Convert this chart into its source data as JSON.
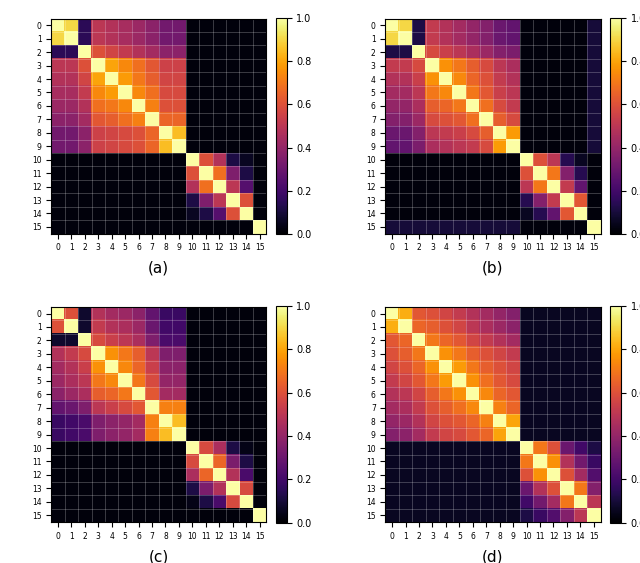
{
  "n": 16,
  "colormap": "inferno",
  "vmin": 0.0,
  "vmax": 1.0,
  "tick_labels": [
    "0",
    "1",
    "2",
    "3",
    "4",
    "5",
    "6",
    "7",
    "8",
    "9",
    "10",
    "11",
    "12",
    "13",
    "14",
    "15"
  ],
  "subplot_labels": [
    "(a)",
    "(b)",
    "(c)",
    "(d)"
  ],
  "label_fontsize": 11,
  "matrices": {
    "a": [
      [
        1.0,
        0.9,
        0.15,
        0.5,
        0.48,
        0.45,
        0.42,
        0.38,
        0.32,
        0.32,
        0.02,
        0.02,
        0.02,
        0.02,
        0.02,
        0.02
      ],
      [
        0.9,
        1.0,
        0.15,
        0.5,
        0.48,
        0.45,
        0.42,
        0.38,
        0.32,
        0.32,
        0.02,
        0.02,
        0.02,
        0.02,
        0.02,
        0.02
      ],
      [
        0.15,
        0.15,
        1.0,
        0.6,
        0.56,
        0.52,
        0.48,
        0.44,
        0.38,
        0.38,
        0.02,
        0.02,
        0.02,
        0.02,
        0.02,
        0.02
      ],
      [
        0.5,
        0.5,
        0.6,
        1.0,
        0.8,
        0.74,
        0.68,
        0.62,
        0.55,
        0.55,
        0.02,
        0.02,
        0.02,
        0.02,
        0.02,
        0.02
      ],
      [
        0.48,
        0.48,
        0.56,
        0.8,
        1.0,
        0.78,
        0.7,
        0.64,
        0.56,
        0.56,
        0.02,
        0.02,
        0.02,
        0.02,
        0.02,
        0.02
      ],
      [
        0.45,
        0.45,
        0.52,
        0.74,
        0.78,
        1.0,
        0.74,
        0.68,
        0.58,
        0.58,
        0.02,
        0.02,
        0.02,
        0.02,
        0.02,
        0.02
      ],
      [
        0.42,
        0.42,
        0.48,
        0.68,
        0.7,
        0.74,
        1.0,
        0.72,
        0.6,
        0.6,
        0.02,
        0.02,
        0.02,
        0.02,
        0.02,
        0.02
      ],
      [
        0.38,
        0.38,
        0.44,
        0.62,
        0.64,
        0.68,
        0.72,
        1.0,
        0.66,
        0.66,
        0.02,
        0.02,
        0.02,
        0.02,
        0.02,
        0.02
      ],
      [
        0.32,
        0.32,
        0.38,
        0.55,
        0.56,
        0.58,
        0.6,
        0.66,
        1.0,
        0.85,
        0.02,
        0.02,
        0.02,
        0.02,
        0.02,
        0.02
      ],
      [
        0.32,
        0.32,
        0.38,
        0.55,
        0.56,
        0.58,
        0.6,
        0.66,
        0.85,
        1.0,
        0.02,
        0.02,
        0.02,
        0.02,
        0.02,
        0.02
      ],
      [
        0.02,
        0.02,
        0.02,
        0.02,
        0.02,
        0.02,
        0.02,
        0.02,
        0.02,
        0.02,
        1.0,
        0.6,
        0.48,
        0.12,
        0.06,
        0.02
      ],
      [
        0.02,
        0.02,
        0.02,
        0.02,
        0.02,
        0.02,
        0.02,
        0.02,
        0.02,
        0.02,
        0.6,
        1.0,
        0.68,
        0.35,
        0.12,
        0.02
      ],
      [
        0.02,
        0.02,
        0.02,
        0.02,
        0.02,
        0.02,
        0.02,
        0.02,
        0.02,
        0.02,
        0.48,
        0.68,
        1.0,
        0.5,
        0.25,
        0.02
      ],
      [
        0.02,
        0.02,
        0.02,
        0.02,
        0.02,
        0.02,
        0.02,
        0.02,
        0.02,
        0.02,
        0.12,
        0.35,
        0.5,
        1.0,
        0.6,
        0.02
      ],
      [
        0.02,
        0.02,
        0.02,
        0.02,
        0.02,
        0.02,
        0.02,
        0.02,
        0.02,
        0.02,
        0.06,
        0.12,
        0.25,
        0.6,
        1.0,
        0.02
      ],
      [
        0.02,
        0.02,
        0.02,
        0.02,
        0.02,
        0.02,
        0.02,
        0.02,
        0.02,
        0.02,
        0.02,
        0.02,
        0.02,
        0.02,
        0.02,
        1.0
      ]
    ],
    "b": [
      [
        1.0,
        0.9,
        0.12,
        0.52,
        0.48,
        0.44,
        0.4,
        0.36,
        0.3,
        0.28,
        0.02,
        0.02,
        0.02,
        0.02,
        0.02,
        0.1
      ],
      [
        0.9,
        1.0,
        0.12,
        0.52,
        0.48,
        0.44,
        0.4,
        0.36,
        0.3,
        0.28,
        0.02,
        0.02,
        0.02,
        0.02,
        0.02,
        0.1
      ],
      [
        0.12,
        0.12,
        1.0,
        0.58,
        0.54,
        0.5,
        0.46,
        0.42,
        0.36,
        0.34,
        0.02,
        0.02,
        0.02,
        0.02,
        0.02,
        0.1
      ],
      [
        0.52,
        0.52,
        0.58,
        1.0,
        0.76,
        0.7,
        0.64,
        0.58,
        0.5,
        0.46,
        0.02,
        0.02,
        0.02,
        0.02,
        0.02,
        0.1
      ],
      [
        0.48,
        0.48,
        0.54,
        0.76,
        1.0,
        0.74,
        0.66,
        0.6,
        0.52,
        0.48,
        0.02,
        0.02,
        0.02,
        0.02,
        0.02,
        0.1
      ],
      [
        0.44,
        0.44,
        0.5,
        0.7,
        0.74,
        1.0,
        0.7,
        0.62,
        0.54,
        0.5,
        0.02,
        0.02,
        0.02,
        0.02,
        0.02,
        0.1
      ],
      [
        0.4,
        0.4,
        0.46,
        0.64,
        0.66,
        0.7,
        1.0,
        0.68,
        0.58,
        0.52,
        0.02,
        0.02,
        0.02,
        0.02,
        0.02,
        0.1
      ],
      [
        0.36,
        0.36,
        0.42,
        0.58,
        0.6,
        0.62,
        0.68,
        1.0,
        0.64,
        0.58,
        0.02,
        0.02,
        0.02,
        0.02,
        0.02,
        0.1
      ],
      [
        0.3,
        0.3,
        0.36,
        0.5,
        0.52,
        0.54,
        0.58,
        0.64,
        1.0,
        0.78,
        0.02,
        0.02,
        0.02,
        0.02,
        0.02,
        0.1
      ],
      [
        0.28,
        0.28,
        0.34,
        0.46,
        0.48,
        0.5,
        0.52,
        0.58,
        0.78,
        1.0,
        0.02,
        0.02,
        0.02,
        0.02,
        0.02,
        0.1
      ],
      [
        0.02,
        0.02,
        0.02,
        0.02,
        0.02,
        0.02,
        0.02,
        0.02,
        0.02,
        0.02,
        1.0,
        0.6,
        0.5,
        0.14,
        0.06,
        0.02
      ],
      [
        0.02,
        0.02,
        0.02,
        0.02,
        0.02,
        0.02,
        0.02,
        0.02,
        0.02,
        0.02,
        0.6,
        1.0,
        0.7,
        0.36,
        0.14,
        0.02
      ],
      [
        0.02,
        0.02,
        0.02,
        0.02,
        0.02,
        0.02,
        0.02,
        0.02,
        0.02,
        0.02,
        0.5,
        0.7,
        1.0,
        0.52,
        0.28,
        0.02
      ],
      [
        0.02,
        0.02,
        0.02,
        0.02,
        0.02,
        0.02,
        0.02,
        0.02,
        0.02,
        0.02,
        0.14,
        0.36,
        0.52,
        1.0,
        0.62,
        0.02
      ],
      [
        0.02,
        0.02,
        0.02,
        0.02,
        0.02,
        0.02,
        0.02,
        0.02,
        0.02,
        0.02,
        0.06,
        0.14,
        0.28,
        0.62,
        1.0,
        0.02
      ],
      [
        0.1,
        0.1,
        0.1,
        0.1,
        0.1,
        0.1,
        0.1,
        0.1,
        0.1,
        0.1,
        0.02,
        0.02,
        0.02,
        0.02,
        0.02,
        1.0
      ]
    ],
    "c": [
      [
        1.0,
        0.6,
        0.08,
        0.48,
        0.44,
        0.42,
        0.38,
        0.28,
        0.18,
        0.18,
        0.02,
        0.02,
        0.02,
        0.02,
        0.02,
        0.02
      ],
      [
        0.6,
        1.0,
        0.08,
        0.52,
        0.48,
        0.46,
        0.42,
        0.3,
        0.2,
        0.2,
        0.02,
        0.02,
        0.02,
        0.02,
        0.02,
        0.02
      ],
      [
        0.08,
        0.08,
        1.0,
        0.58,
        0.54,
        0.5,
        0.46,
        0.35,
        0.22,
        0.22,
        0.02,
        0.02,
        0.02,
        0.02,
        0.02,
        0.02
      ],
      [
        0.48,
        0.52,
        0.58,
        1.0,
        0.76,
        0.7,
        0.64,
        0.5,
        0.35,
        0.35,
        0.02,
        0.02,
        0.02,
        0.02,
        0.02,
        0.02
      ],
      [
        0.44,
        0.48,
        0.54,
        0.76,
        1.0,
        0.74,
        0.66,
        0.54,
        0.38,
        0.38,
        0.02,
        0.02,
        0.02,
        0.02,
        0.02,
        0.02
      ],
      [
        0.42,
        0.46,
        0.5,
        0.7,
        0.74,
        1.0,
        0.7,
        0.58,
        0.4,
        0.4,
        0.02,
        0.02,
        0.02,
        0.02,
        0.02,
        0.02
      ],
      [
        0.38,
        0.42,
        0.46,
        0.64,
        0.66,
        0.7,
        1.0,
        0.62,
        0.44,
        0.44,
        0.02,
        0.02,
        0.02,
        0.02,
        0.02,
        0.02
      ],
      [
        0.28,
        0.3,
        0.35,
        0.5,
        0.54,
        0.58,
        0.62,
        1.0,
        0.72,
        0.72,
        0.02,
        0.02,
        0.02,
        0.02,
        0.02,
        0.02
      ],
      [
        0.18,
        0.2,
        0.22,
        0.35,
        0.38,
        0.4,
        0.44,
        0.72,
        1.0,
        0.85,
        0.02,
        0.02,
        0.02,
        0.02,
        0.02,
        0.02
      ],
      [
        0.18,
        0.2,
        0.22,
        0.35,
        0.38,
        0.4,
        0.44,
        0.72,
        0.85,
        1.0,
        0.02,
        0.02,
        0.02,
        0.02,
        0.02,
        0.02
      ],
      [
        0.02,
        0.02,
        0.02,
        0.02,
        0.02,
        0.02,
        0.02,
        0.02,
        0.02,
        0.02,
        1.0,
        0.58,
        0.46,
        0.12,
        0.04,
        0.02
      ],
      [
        0.02,
        0.02,
        0.02,
        0.02,
        0.02,
        0.02,
        0.02,
        0.02,
        0.02,
        0.02,
        0.58,
        1.0,
        0.66,
        0.34,
        0.12,
        0.02
      ],
      [
        0.02,
        0.02,
        0.02,
        0.02,
        0.02,
        0.02,
        0.02,
        0.02,
        0.02,
        0.02,
        0.46,
        0.66,
        1.0,
        0.48,
        0.22,
        0.02
      ],
      [
        0.02,
        0.02,
        0.02,
        0.02,
        0.02,
        0.02,
        0.02,
        0.02,
        0.02,
        0.02,
        0.12,
        0.34,
        0.48,
        1.0,
        0.58,
        0.02
      ],
      [
        0.02,
        0.02,
        0.02,
        0.02,
        0.02,
        0.02,
        0.02,
        0.02,
        0.02,
        0.02,
        0.04,
        0.12,
        0.22,
        0.58,
        1.0,
        0.02
      ],
      [
        0.02,
        0.02,
        0.02,
        0.02,
        0.02,
        0.02,
        0.02,
        0.02,
        0.02,
        0.02,
        0.02,
        0.02,
        0.02,
        0.02,
        0.02,
        1.0
      ]
    ],
    "d": [
      [
        1.0,
        0.82,
        0.62,
        0.6,
        0.56,
        0.52,
        0.48,
        0.44,
        0.4,
        0.36,
        0.06,
        0.06,
        0.06,
        0.06,
        0.06,
        0.06
      ],
      [
        0.82,
        1.0,
        0.66,
        0.64,
        0.6,
        0.56,
        0.5,
        0.46,
        0.42,
        0.38,
        0.06,
        0.06,
        0.06,
        0.06,
        0.06,
        0.06
      ],
      [
        0.62,
        0.66,
        1.0,
        0.7,
        0.66,
        0.62,
        0.56,
        0.52,
        0.48,
        0.44,
        0.06,
        0.06,
        0.06,
        0.06,
        0.06,
        0.06
      ],
      [
        0.6,
        0.64,
        0.7,
        1.0,
        0.76,
        0.7,
        0.64,
        0.6,
        0.56,
        0.52,
        0.06,
        0.06,
        0.06,
        0.06,
        0.06,
        0.06
      ],
      [
        0.56,
        0.6,
        0.66,
        0.76,
        1.0,
        0.78,
        0.7,
        0.64,
        0.6,
        0.56,
        0.06,
        0.06,
        0.06,
        0.06,
        0.06,
        0.06
      ],
      [
        0.52,
        0.56,
        0.62,
        0.7,
        0.78,
        1.0,
        0.76,
        0.68,
        0.62,
        0.58,
        0.06,
        0.06,
        0.06,
        0.06,
        0.06,
        0.06
      ],
      [
        0.48,
        0.5,
        0.56,
        0.64,
        0.7,
        0.76,
        1.0,
        0.74,
        0.66,
        0.62,
        0.06,
        0.06,
        0.06,
        0.06,
        0.06,
        0.06
      ],
      [
        0.44,
        0.46,
        0.52,
        0.6,
        0.64,
        0.68,
        0.74,
        1.0,
        0.72,
        0.66,
        0.06,
        0.06,
        0.06,
        0.06,
        0.06,
        0.06
      ],
      [
        0.4,
        0.42,
        0.48,
        0.56,
        0.6,
        0.62,
        0.66,
        0.72,
        1.0,
        0.8,
        0.06,
        0.06,
        0.06,
        0.06,
        0.06,
        0.06
      ],
      [
        0.36,
        0.38,
        0.44,
        0.52,
        0.56,
        0.58,
        0.62,
        0.66,
        0.8,
        1.0,
        0.06,
        0.06,
        0.06,
        0.06,
        0.06,
        0.06
      ],
      [
        0.06,
        0.06,
        0.06,
        0.06,
        0.06,
        0.06,
        0.06,
        0.06,
        0.06,
        0.06,
        1.0,
        0.7,
        0.6,
        0.3,
        0.2,
        0.12
      ],
      [
        0.06,
        0.06,
        0.06,
        0.06,
        0.06,
        0.06,
        0.06,
        0.06,
        0.06,
        0.06,
        0.7,
        1.0,
        0.76,
        0.48,
        0.32,
        0.18
      ],
      [
        0.06,
        0.06,
        0.06,
        0.06,
        0.06,
        0.06,
        0.06,
        0.06,
        0.06,
        0.06,
        0.6,
        0.76,
        1.0,
        0.6,
        0.44,
        0.24
      ],
      [
        0.06,
        0.06,
        0.06,
        0.06,
        0.06,
        0.06,
        0.06,
        0.06,
        0.06,
        0.06,
        0.3,
        0.48,
        0.6,
        1.0,
        0.7,
        0.36
      ],
      [
        0.06,
        0.06,
        0.06,
        0.06,
        0.06,
        0.06,
        0.06,
        0.06,
        0.06,
        0.06,
        0.2,
        0.32,
        0.44,
        0.7,
        1.0,
        0.5
      ],
      [
        0.06,
        0.06,
        0.06,
        0.06,
        0.06,
        0.06,
        0.06,
        0.06,
        0.06,
        0.06,
        0.12,
        0.18,
        0.24,
        0.36,
        0.5,
        1.0
      ]
    ]
  }
}
